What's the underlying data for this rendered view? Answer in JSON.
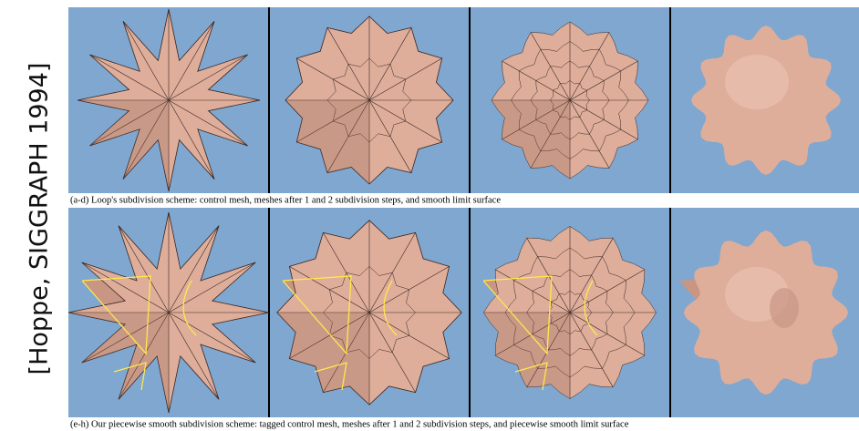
{
  "side_label": "[Hoppe, SIGGRAPH 1994]",
  "captions": [
    "(a-d) Loop's subdivision scheme: control mesh, meshes after 1 and 2 subdivision steps, and smooth limit surface",
    "(e-h) Our piecewise smooth subdivision scheme: tagged control mesh, meshes after 1 and 2 subdivision steps, and piecewise smooth limit surface"
  ]
}
